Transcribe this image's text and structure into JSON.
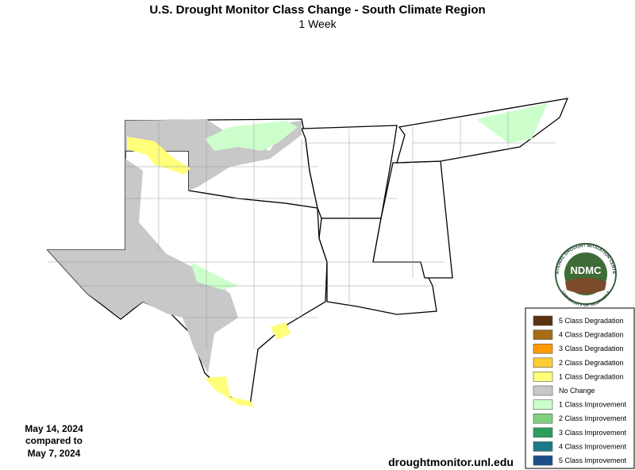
{
  "header": {
    "title": "U.S. Drought Monitor Class Change - South Climate Region",
    "subtitle": "1 Week"
  },
  "legend": {
    "items": [
      {
        "label": "5 Class Degradation",
        "color": "#5a3310"
      },
      {
        "label": "4 Class Degradation",
        "color": "#a86c14"
      },
      {
        "label": "3 Class Degradation",
        "color": "#ff9a00"
      },
      {
        "label": "2 Class Degradation",
        "color": "#ffcc33"
      },
      {
        "label": "1 Class Degradation",
        "color": "#ffff7a"
      },
      {
        "label": "No Change",
        "color": "#c8c8c8"
      },
      {
        "label": "1 Class Improvement",
        "color": "#ccffcc"
      },
      {
        "label": "2 Class Improvement",
        "color": "#7fd17f"
      },
      {
        "label": "3 Class Improvement",
        "color": "#2e9e5e"
      },
      {
        "label": "4 Class Improvement",
        "color": "#1a7a8a"
      },
      {
        "label": "5 Class Improvement",
        "color": "#1a4f8a"
      }
    ]
  },
  "dates": {
    "current": "May 14, 2024",
    "compared": "compared to",
    "previous": "May 7, 2024"
  },
  "source": "droughtmonitor.unl.edu",
  "logo": {
    "text": "NDMC",
    "ring_top": "NATIONAL DROUGHT MITIGATION CENTER",
    "ring_bottom": "UNIVERSITY OF NEBRASKA"
  }
}
